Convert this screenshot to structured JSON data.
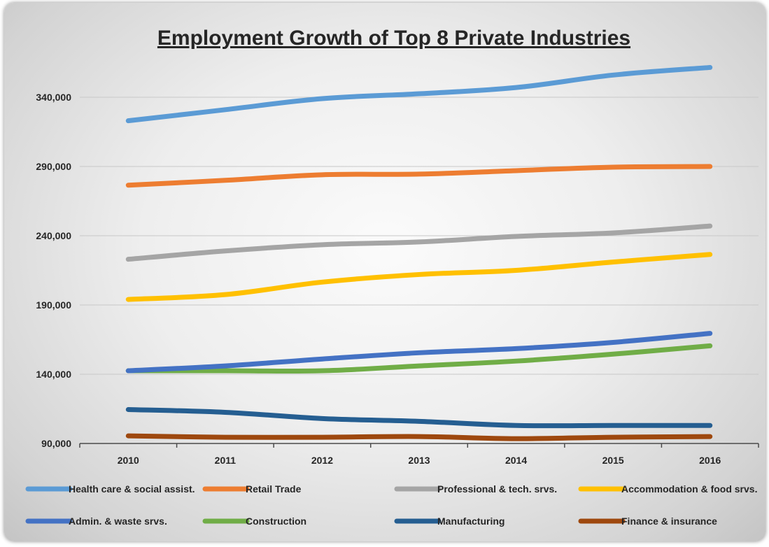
{
  "chart_data": {
    "type": "line",
    "title": "Employment Growth of Top 8 Private Industries",
    "xlabel": "",
    "ylabel": "",
    "categories": [
      "2010",
      "2011",
      "2012",
      "2013",
      "2014",
      "2015",
      "2016"
    ],
    "y_ticks": [
      "90,000",
      "140,000",
      "190,000",
      "240,000",
      "290,000",
      "340,000"
    ],
    "y_tick_values": [
      90000,
      140000,
      190000,
      240000,
      290000,
      340000
    ],
    "ylim": [
      90000,
      380000
    ],
    "grid": true,
    "legend_position": "bottom",
    "series": [
      {
        "name": "Health care & social assist.",
        "color": "#5B9BD5",
        "values": [
          323000,
          331000,
          339000,
          342500,
          347000,
          356000,
          361500
        ]
      },
      {
        "name": "Retail Trade",
        "color": "#ED7D31",
        "values": [
          276500,
          280000,
          284000,
          284500,
          287000,
          289500,
          290000
        ]
      },
      {
        "name": "Professional & tech. srvs.",
        "color": "#A5A5A5",
        "values": [
          223000,
          229000,
          233500,
          235500,
          239500,
          242000,
          247000
        ]
      },
      {
        "name": "Accommodation & food srvs.",
        "color": "#FFC000",
        "values": [
          194000,
          197500,
          206500,
          212000,
          215000,
          221000,
          226500
        ]
      },
      {
        "name": "Admin. & waste srvs.",
        "color": "#4472C4",
        "values": [
          142500,
          146000,
          151000,
          155500,
          158500,
          163000,
          169500
        ]
      },
      {
        "name": "Construction",
        "color": "#70AD47",
        "values": [
          142500,
          142500,
          142500,
          146000,
          149500,
          154500,
          160500
        ]
      },
      {
        "name": "Manufacturing",
        "color": "#255E91",
        "values": [
          114500,
          112500,
          108000,
          106000,
          103000,
          103000,
          103000
        ]
      },
      {
        "name": "Finance & insurance",
        "color": "#9E480E",
        "values": [
          95500,
          94500,
          94500,
          95000,
          93500,
          94500,
          95000
        ]
      }
    ]
  }
}
